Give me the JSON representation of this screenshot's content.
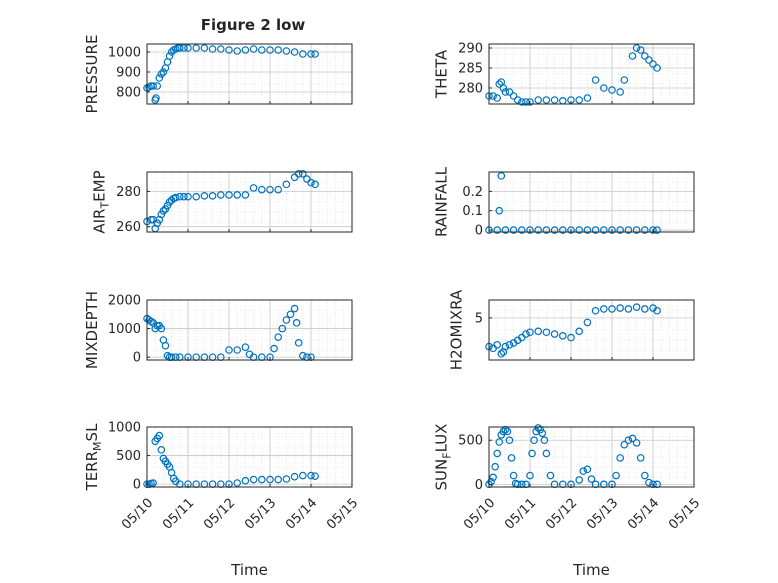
{
  "figure": {
    "title": "Figure 2 low",
    "marker_color": "#0072bd"
  },
  "chart_data": [
    {
      "type": "scatter",
      "ylabel_main": "PRESSURE",
      "ylabel_sub": "",
      "ylabel_tail": "",
      "xlabel": "",
      "ylim": [
        740,
        1040
      ],
      "yticks": [
        800,
        900,
        1000
      ],
      "xlim": [
        0,
        5
      ],
      "xticks": [],
      "grid": true,
      "x": [
        0.0,
        0.05,
        0.1,
        0.15,
        0.2,
        0.22,
        0.25,
        0.3,
        0.35,
        0.4,
        0.45,
        0.5,
        0.55,
        0.6,
        0.65,
        0.7,
        0.75,
        0.8,
        0.9,
        1.0,
        1.2,
        1.4,
        1.6,
        1.8,
        2.0,
        2.2,
        2.4,
        2.6,
        2.8,
        3.0,
        3.2,
        3.4,
        3.6,
        3.8,
        4.0,
        4.1
      ],
      "y": [
        820,
        825,
        830,
        830,
        760,
        770,
        830,
        870,
        890,
        900,
        920,
        950,
        980,
        1000,
        1010,
        1015,
        1020,
        1020,
        1020,
        1020,
        1020,
        1020,
        1015,
        1015,
        1010,
        1005,
        1010,
        1015,
        1010,
        1010,
        1010,
        1005,
        1000,
        990,
        990,
        990
      ]
    },
    {
      "type": "scatter",
      "ylabel_main": "THETA",
      "ylabel_sub": "",
      "ylabel_tail": "",
      "xlabel": "",
      "ylim": [
        276,
        291
      ],
      "yticks": [
        280,
        285,
        290
      ],
      "xlim": [
        0,
        5
      ],
      "xticks": [],
      "grid": true,
      "x": [
        0.0,
        0.1,
        0.2,
        0.25,
        0.3,
        0.35,
        0.4,
        0.5,
        0.6,
        0.7,
        0.8,
        0.9,
        1.0,
        1.2,
        1.4,
        1.6,
        1.8,
        2.0,
        2.2,
        2.4,
        2.6,
        2.8,
        3.0,
        3.2,
        3.3,
        3.5,
        3.6,
        3.7,
        3.8,
        3.9,
        4.0,
        4.1
      ],
      "y": [
        278,
        278,
        277.5,
        281,
        281.5,
        280,
        279,
        279,
        278,
        277,
        276.5,
        276.5,
        276.5,
        277,
        277,
        277,
        276.8,
        277,
        277,
        277.5,
        282,
        280,
        279.5,
        279,
        282,
        288,
        290,
        289.5,
        288,
        287,
        286,
        285
      ]
    },
    {
      "type": "scatter",
      "ylabel_main": "AIR",
      "ylabel_sub": "T",
      "ylabel_tail": "EMP",
      "xlabel": "",
      "ylim": [
        257,
        291
      ],
      "yticks": [
        260,
        280
      ],
      "xlim": [
        0,
        5
      ],
      "xticks": [],
      "grid": true,
      "x": [
        0.0,
        0.1,
        0.15,
        0.2,
        0.25,
        0.3,
        0.35,
        0.4,
        0.45,
        0.5,
        0.55,
        0.6,
        0.65,
        0.7,
        0.8,
        0.9,
        1.0,
        1.2,
        1.4,
        1.6,
        1.8,
        2.0,
        2.2,
        2.4,
        2.6,
        2.8,
        3.0,
        3.2,
        3.4,
        3.6,
        3.7,
        3.8,
        3.9,
        4.0,
        4.1
      ],
      "y": [
        263,
        264,
        264,
        259,
        262,
        264,
        267,
        269,
        270,
        272,
        274,
        275,
        276,
        276.5,
        277,
        277,
        277,
        277,
        277.5,
        277.5,
        278,
        278,
        278,
        278,
        282,
        281,
        281,
        281,
        284,
        288,
        290,
        290,
        287,
        285,
        284
      ]
    },
    {
      "type": "scatter",
      "ylabel_main": "RAINFALL",
      "ylabel_sub": "",
      "ylabel_tail": "",
      "xlabel": "",
      "ylim": [
        -0.01,
        0.3
      ],
      "yticks": [
        0,
        0.1,
        0.2
      ],
      "ytick_labels": [
        "0",
        "0.1",
        "0.2"
      ],
      "xlim": [
        0,
        5
      ],
      "xticks": [],
      "grid": true,
      "x": [
        0.0,
        0.2,
        0.4,
        0.6,
        0.8,
        1.0,
        1.2,
        1.4,
        1.6,
        1.8,
        2.0,
        2.2,
        2.4,
        2.6,
        2.8,
        3.0,
        3.2,
        3.4,
        3.6,
        3.8,
        4.0,
        4.1,
        0.25,
        0.3
      ],
      "y": [
        0,
        0,
        0,
        0,
        0,
        0,
        0,
        0,
        0,
        0,
        0,
        0,
        0,
        0,
        0,
        0,
        0,
        0,
        0,
        0,
        0,
        0,
        0.1,
        0.28
      ]
    },
    {
      "type": "scatter",
      "ylabel_main": "MIXDEPTH",
      "ylabel_sub": "",
      "ylabel_tail": "",
      "xlabel": "",
      "ylim": [
        -100,
        2000
      ],
      "yticks": [
        0,
        1000,
        2000
      ],
      "xlim": [
        0,
        5
      ],
      "xticks": [],
      "grid": true,
      "x": [
        0.0,
        0.05,
        0.1,
        0.15,
        0.2,
        0.25,
        0.3,
        0.35,
        0.4,
        0.45,
        0.5,
        0.55,
        0.6,
        0.7,
        0.8,
        1.0,
        1.2,
        1.4,
        1.6,
        1.8,
        2.0,
        2.2,
        2.4,
        2.5,
        2.6,
        2.8,
        3.0,
        3.1,
        3.2,
        3.3,
        3.4,
        3.5,
        3.6,
        3.65,
        3.7,
        3.8,
        3.9,
        4.0
      ],
      "y": [
        1350,
        1300,
        1250,
        1200,
        1000,
        1100,
        1100,
        1000,
        600,
        400,
        50,
        0,
        0,
        0,
        0,
        0,
        0,
        0,
        0,
        0,
        250,
        250,
        350,
        100,
        0,
        0,
        0,
        300,
        700,
        1000,
        1300,
        1500,
        1700,
        1200,
        500,
        50,
        0,
        0
      ]
    },
    {
      "type": "scatter",
      "ylabel_main": "H2OMIXRA",
      "ylabel_sub": "",
      "ylabel_tail": "",
      "xlabel": "",
      "ylim": [
        0.3,
        7
      ],
      "yticks": [
        5
      ],
      "xlim": [
        0,
        5
      ],
      "xticks": [],
      "grid": true,
      "x": [
        0.0,
        0.1,
        0.2,
        0.3,
        0.35,
        0.4,
        0.5,
        0.6,
        0.7,
        0.8,
        0.9,
        1.0,
        1.2,
        1.4,
        1.6,
        1.8,
        2.0,
        2.2,
        2.4,
        2.6,
        2.8,
        3.0,
        3.2,
        3.4,
        3.6,
        3.8,
        4.0,
        4.1
      ],
      "y": [
        1.8,
        1.6,
        2.0,
        1.0,
        1.2,
        1.8,
        2.0,
        2.2,
        2.5,
        2.8,
        3.2,
        3.4,
        3.5,
        3.4,
        3.2,
        3.0,
        2.8,
        3.5,
        4.5,
        5.8,
        6.0,
        6.0,
        6.1,
        6.0,
        6.2,
        6.0,
        6.1,
        5.8
      ]
    },
    {
      "type": "scatter",
      "ylabel_main": "TERR",
      "ylabel_sub": "M",
      "ylabel_tail": "SL",
      "xlabel": "Time",
      "ylim": [
        -50,
        1000
      ],
      "yticks": [
        0,
        500,
        1000
      ],
      "xlim": [
        0,
        5
      ],
      "xticks": [
        "05/10",
        "05/11",
        "05/12",
        "05/13",
        "05/14",
        "05/15"
      ],
      "grid": true,
      "x": [
        0.0,
        0.05,
        0.1,
        0.15,
        0.2,
        0.25,
        0.3,
        0.35,
        0.4,
        0.45,
        0.5,
        0.55,
        0.6,
        0.65,
        0.7,
        0.8,
        1.0,
        1.2,
        1.4,
        1.6,
        1.8,
        2.0,
        2.2,
        2.4,
        2.6,
        2.8,
        3.0,
        3.2,
        3.4,
        3.6,
        3.8,
        4.0,
        4.1
      ],
      "y": [
        0,
        0,
        10,
        20,
        750,
        800,
        850,
        600,
        450,
        400,
        350,
        300,
        200,
        100,
        50,
        0,
        0,
        0,
        0,
        0,
        0,
        0,
        20,
        60,
        80,
        80,
        80,
        80,
        90,
        130,
        150,
        150,
        140
      ]
    },
    {
      "type": "scatter",
      "ylabel_main": "SUN",
      "ylabel_sub": "F",
      "ylabel_tail": "LUX",
      "xlabel": "Time",
      "ylim": [
        -30,
        650
      ],
      "yticks": [
        0,
        500
      ],
      "xlim": [
        0,
        5
      ],
      "xticks": [
        "05/10",
        "05/11",
        "05/12",
        "05/13",
        "05/14",
        "05/15"
      ],
      "grid": true,
      "x": [
        0.0,
        0.05,
        0.1,
        0.15,
        0.2,
        0.25,
        0.3,
        0.35,
        0.4,
        0.45,
        0.5,
        0.55,
        0.6,
        0.65,
        0.7,
        0.8,
        0.9,
        1.0,
        1.05,
        1.1,
        1.15,
        1.2,
        1.25,
        1.3,
        1.35,
        1.4,
        1.5,
        1.6,
        1.8,
        2.0,
        2.2,
        2.3,
        2.4,
        2.5,
        2.6,
        2.8,
        3.0,
        3.1,
        3.2,
        3.3,
        3.4,
        3.5,
        3.6,
        3.7,
        3.8,
        3.9,
        4.0,
        4.1
      ],
      "y": [
        0,
        30,
        80,
        200,
        350,
        480,
        560,
        600,
        620,
        600,
        500,
        300,
        100,
        10,
        0,
        0,
        0,
        100,
        350,
        500,
        600,
        640,
        620,
        580,
        500,
        350,
        100,
        0,
        0,
        0,
        50,
        150,
        170,
        60,
        0,
        0,
        0,
        100,
        300,
        450,
        500,
        520,
        470,
        300,
        100,
        20,
        0,
        0
      ]
    }
  ]
}
